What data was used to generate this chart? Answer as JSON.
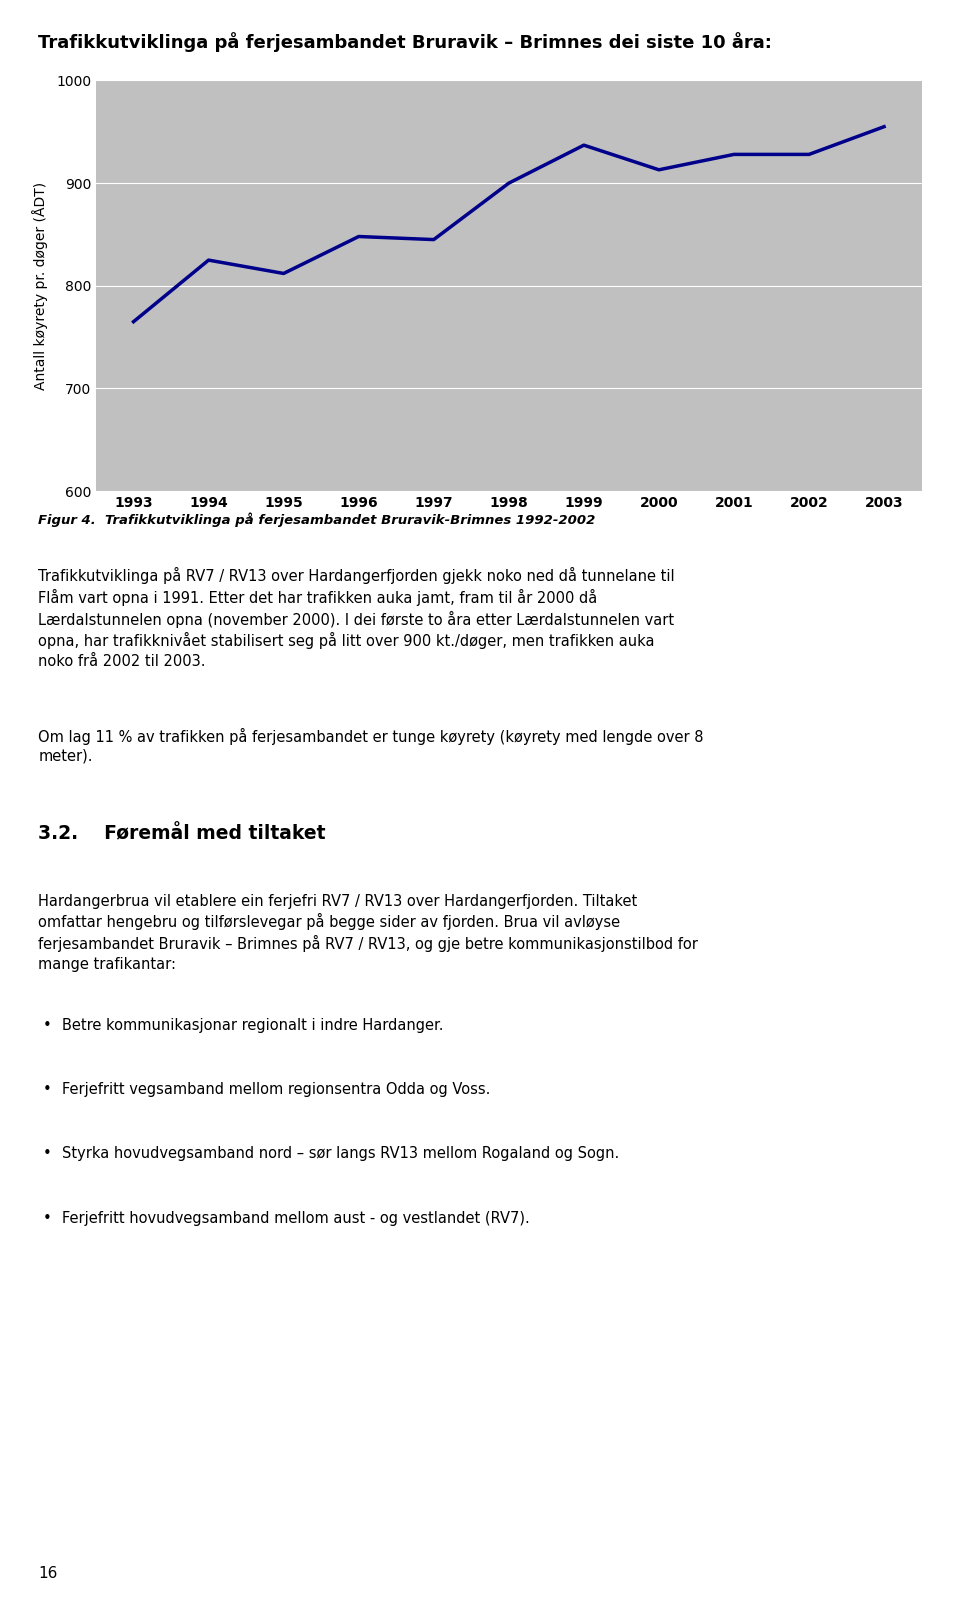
{
  "title": "Trafikkutviklinga på ferjesambandet Bruravik – Brimnes dei siste 10 åra:",
  "figure_caption": "Figur 4.  Trafikkutviklinga på ferjesambandet Bruravik-Brimnes 1992-2002",
  "ylabel": "Antall køyrety pr. døger (ÅDT)",
  "years": [
    1993,
    1994,
    1995,
    1996,
    1997,
    1998,
    1999,
    2000,
    2001,
    2002,
    2003
  ],
  "values": [
    765,
    825,
    812,
    848,
    845,
    900,
    937,
    913,
    928,
    928,
    955
  ],
  "line_color": "#00008B",
  "line_width": 2.5,
  "plot_bg_color": "#C0C0C0",
  "fig_bg_color": "#FFFFFF",
  "ylim": [
    600,
    1000
  ],
  "yticks": [
    600,
    700,
    800,
    900,
    1000
  ],
  "title_fontsize": 13,
  "ylabel_fontsize": 10,
  "tick_fontsize": 10,
  "caption_fontsize": 9.5,
  "body_fontsize": 10.5,
  "body_text": "Trafikkutviklinga på RV7 / RV13 over Hardangerfjorden gjekk noko ned då tunnelane til Flåm vart opna i 1991.  Etter det har trafikken auka jamt, fram til år 2000 då Lærdalstunnelen opna (november 2000).  I dei første to åra etter Lærdalstunnelen vart opna, har trafikknivået stabilisert seg på litt over 900 kt./døger, men trafikken auka noko frå 2002 til 2003.",
  "body_text2": "Om lag 11 % av trafikken på ferjesambandet er tunge køyrety (køyrety med lengde over 8 meter).",
  "section_title": "3.2.    Føremål med tiltaket",
  "section_body1": "Hardangerbrua vil etablere ein ferjefri RV7 / RV13 over Hardangerfjorden.  Tiltaket omfattar hengebru og tilførslevegar på begge sider av fjorden. Brua vil avløyse ferjesambandet Bruravik – Brimnes på RV7 / RV13, og gje betre kommunikasjonstilbod for mange trafikantar:",
  "bullet_points": [
    "Betre kommunikasjonar regionalt i indre Hardanger.",
    "Ferjefritt vegsamband mellom regionsentra Odda og Voss.",
    "Styrka hovudvegsamband nord – sør langs RV13 mellom Rogaland og Sogn.",
    "Ferjefritt hovudvegsamband mellom aust - og vestlandet (RV7)."
  ],
  "page_number": "16"
}
